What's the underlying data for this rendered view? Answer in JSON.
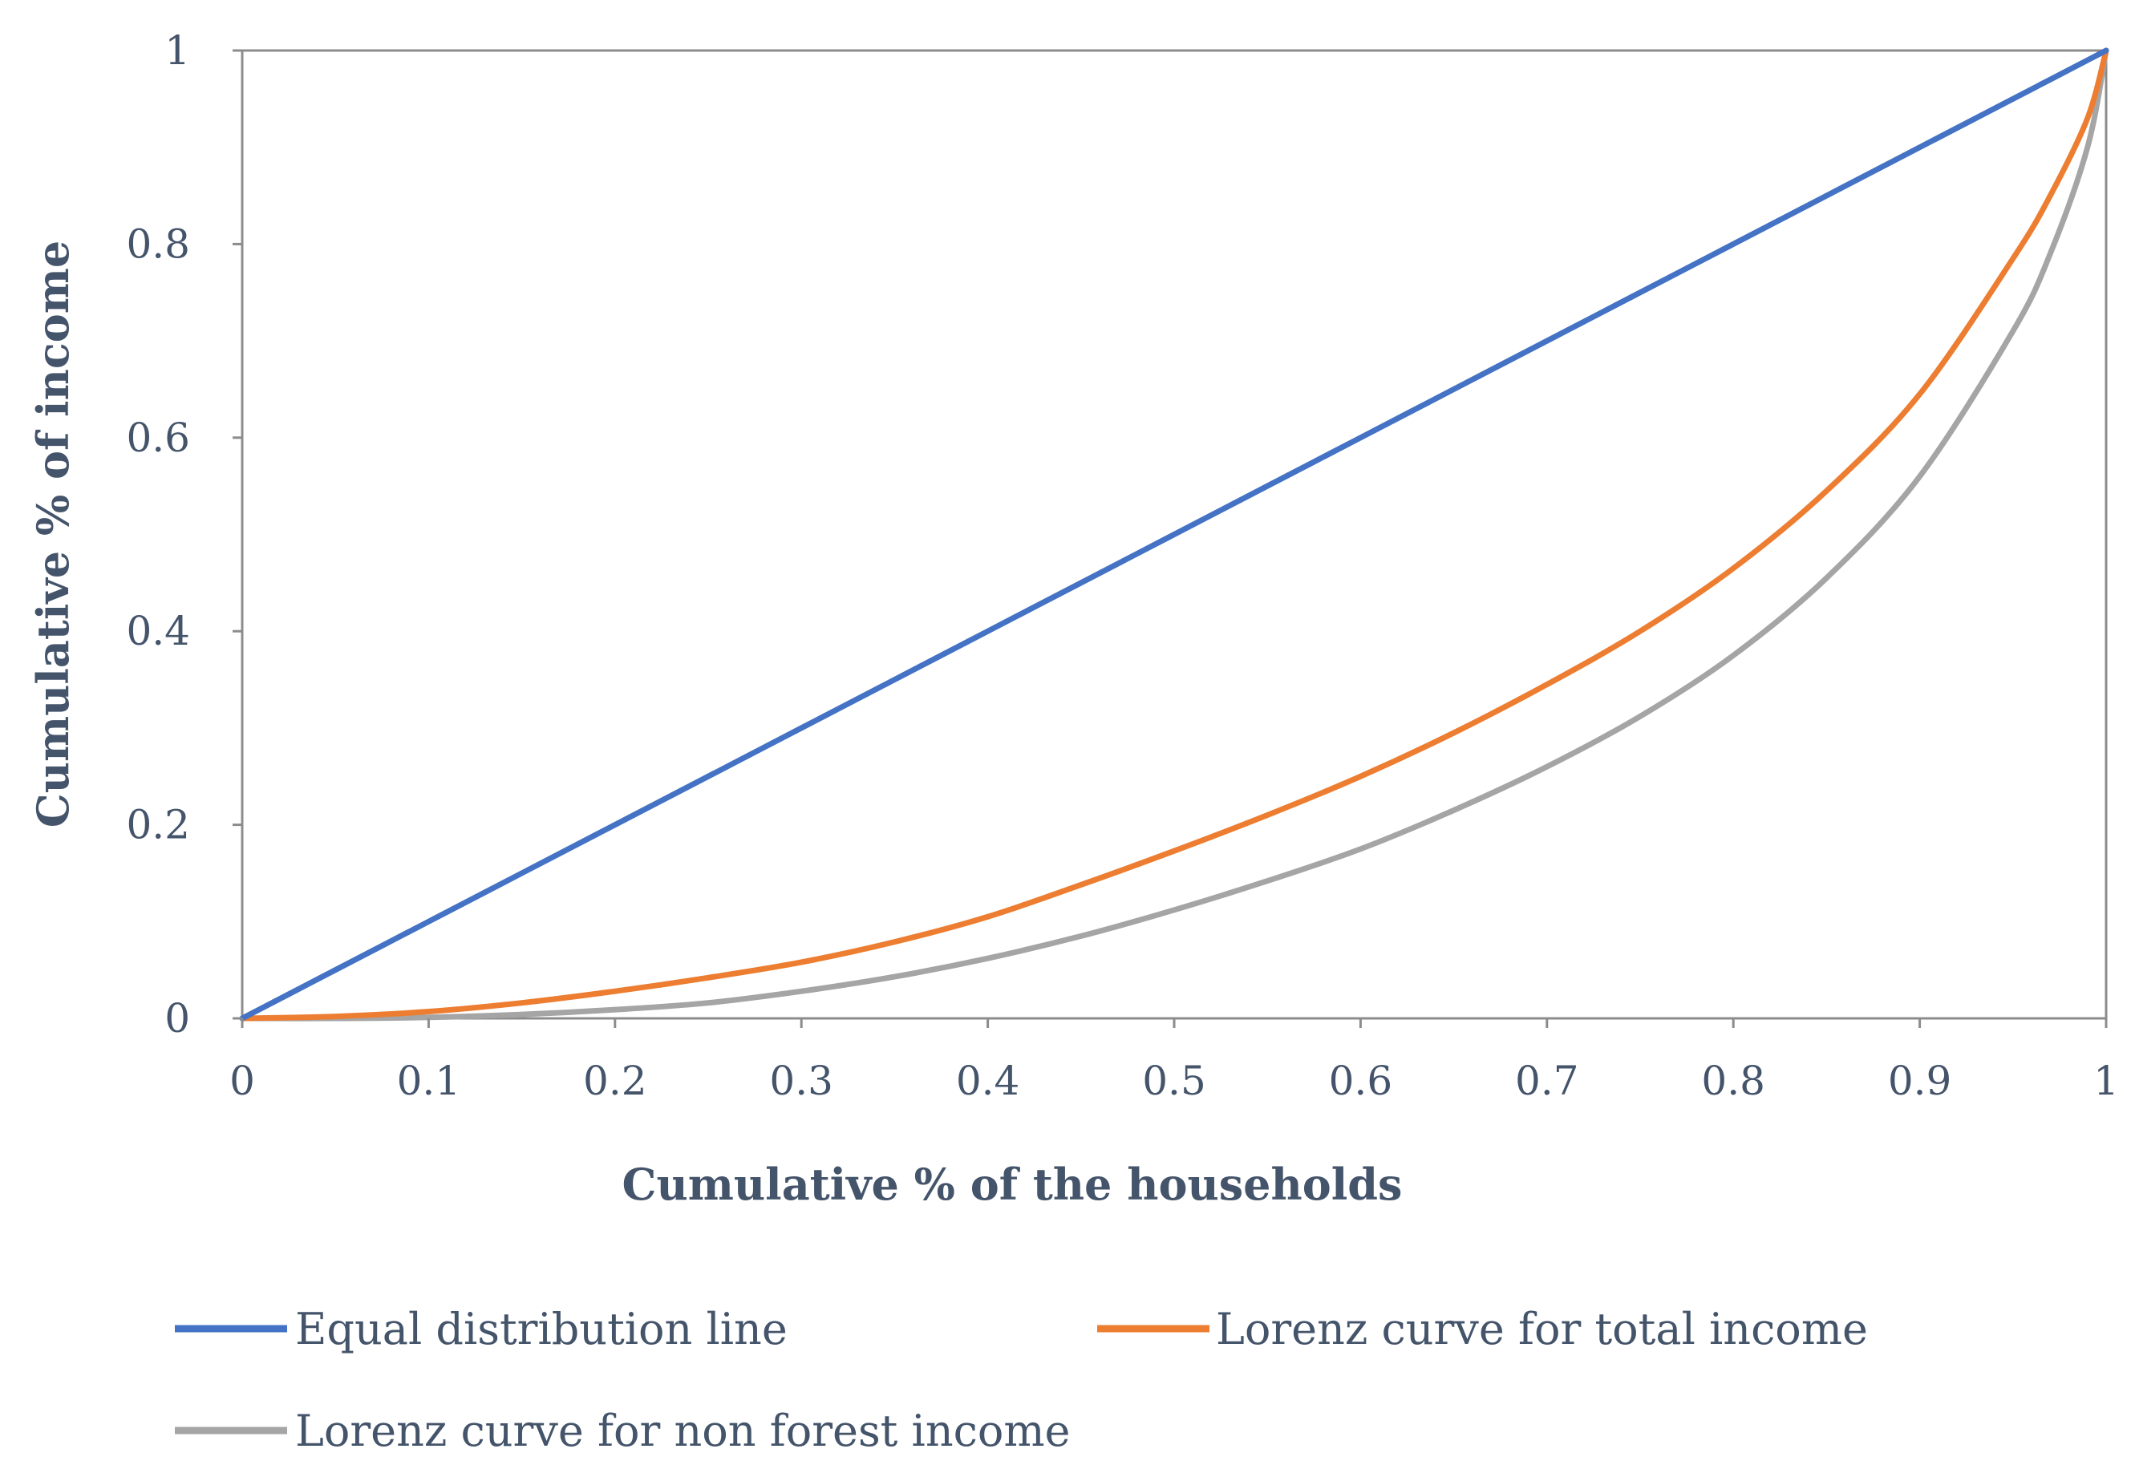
{
  "chart_data": {
    "type": "line",
    "title": "",
    "xlabel": "Cumulative % of the households",
    "ylabel": "Cumulative % of income",
    "xlim": [
      0,
      1
    ],
    "ylim": [
      0,
      1
    ],
    "grid": false,
    "legend_position": "bottom",
    "x_ticks": [
      "0",
      "0.1",
      "0.2",
      "0.3",
      "0.4",
      "0.5",
      "0.6",
      "0.7",
      "0.8",
      "0.9",
      "1"
    ],
    "y_ticks": [
      "0",
      "0.2",
      "0.4",
      "0.6",
      "0.8",
      "1"
    ],
    "x": [
      0,
      0.05,
      0.1,
      0.15,
      0.2,
      0.25,
      0.3,
      0.35,
      0.4,
      0.45,
      0.5,
      0.55,
      0.6,
      0.65,
      0.7,
      0.75,
      0.8,
      0.85,
      0.9,
      0.95,
      0.97,
      0.99,
      1
    ],
    "series": [
      {
        "name": "Equal distribution line",
        "color": "#4472c4",
        "values": [
          0,
          0.05,
          0.1,
          0.15,
          0.2,
          0.25,
          0.3,
          0.35,
          0.4,
          0.45,
          0.5,
          0.55,
          0.6,
          0.65,
          0.7,
          0.75,
          0.8,
          0.85,
          0.9,
          0.95,
          0.97,
          0.99,
          1
        ]
      },
      {
        "name": "Lorenz curve for total income",
        "color": "#ed7d31",
        "values": [
          0,
          0.002,
          0.007,
          0.016,
          0.028,
          0.042,
          0.058,
          0.079,
          0.105,
          0.138,
          0.173,
          0.21,
          0.25,
          0.295,
          0.345,
          0.4,
          0.465,
          0.545,
          0.645,
          0.785,
          0.85,
          0.93,
          1
        ]
      },
      {
        "name": "Lorenz curve for non forest income",
        "color": "#a5a5a5",
        "values": [
          0,
          0,
          0.001,
          0.004,
          0.009,
          0.016,
          0.028,
          0.043,
          0.062,
          0.085,
          0.112,
          0.142,
          0.175,
          0.215,
          0.26,
          0.312,
          0.375,
          0.455,
          0.56,
          0.71,
          0.79,
          0.9,
          1
        ]
      }
    ]
  }
}
